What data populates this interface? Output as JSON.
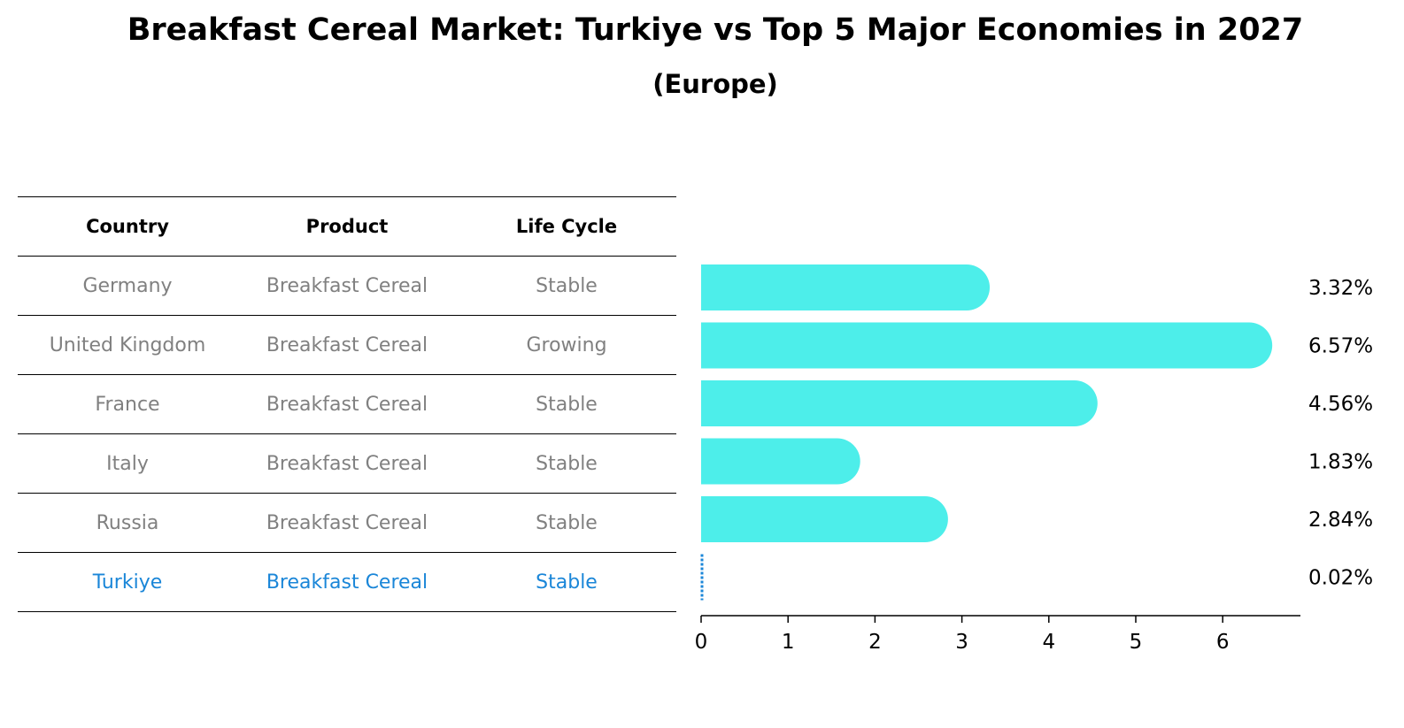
{
  "title": "Breakfast Cereal Market: Turkiye vs Top 5 Major Economies in 2027",
  "subtitle": "(Europe)",
  "table": {
    "headers": [
      "Country",
      "Product",
      "Life Cycle"
    ],
    "rows": [
      [
        "Germany",
        "Breakfast Cereal",
        "Stable"
      ],
      [
        "United Kingdom",
        "Breakfast Cereal",
        "Growing"
      ],
      [
        "France",
        "Breakfast Cereal",
        "Stable"
      ],
      [
        "Italy",
        "Breakfast Cereal",
        "Stable"
      ],
      [
        "Russia",
        "Breakfast Cereal",
        "Stable"
      ],
      [
        "Turkiye",
        "Breakfast Cereal",
        "Stable"
      ]
    ]
  },
  "chart_data": {
    "type": "bar",
    "orientation": "horizontal",
    "categories": [
      "Germany",
      "United Kingdom",
      "France",
      "Italy",
      "Russia",
      "Turkiye"
    ],
    "values": [
      3.32,
      6.57,
      4.56,
      1.83,
      2.84,
      0.02
    ],
    "value_labels": [
      "3.32%",
      "6.57%",
      "4.56%",
      "1.83%",
      "2.84%",
      "0.02%"
    ],
    "xlim": [
      0,
      6.9
    ],
    "xticks": [
      0,
      1,
      2,
      3,
      4,
      5,
      6
    ],
    "grid": false,
    "colors": {
      "bar": "#4deeea",
      "highlight": "#1a86d8"
    }
  }
}
